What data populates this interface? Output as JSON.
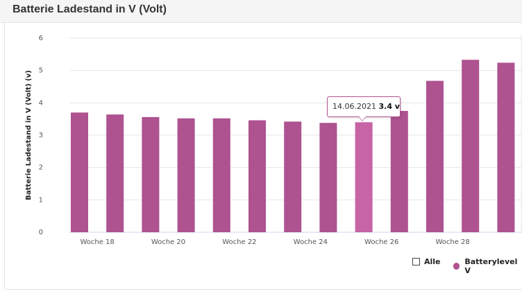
{
  "header": {
    "title": "Batterie Ladestand in V (Volt)"
  },
  "colors": {
    "bar": "#ae5290",
    "bar_highlight": "#c764a5",
    "tooltip_border": "#b35593"
  },
  "tooltip": {
    "date": "14.06.2021",
    "value": "3.4 v"
  },
  "legend": [
    {
      "label": "Alle",
      "symbol": "checkbox-icon"
    },
    {
      "label": "Batterylevel V",
      "symbol": "circle-icon",
      "color": "#ae5290"
    }
  ],
  "chart_data": {
    "type": "bar",
    "ylabel": "Batterie Ladestand in V (Volt) (v)",
    "ylim": [
      0,
      6
    ],
    "yticks": [
      "0",
      "1",
      "2",
      "3",
      "4",
      "5",
      "6"
    ],
    "x_tick_labels": [
      "Woche 18",
      "Woche 20",
      "Woche 22",
      "Woche 24",
      "Woche 26",
      "Woche 28"
    ],
    "grid": true,
    "series": [
      {
        "name": "Batterylevel V",
        "values": [
          3.7,
          3.64,
          3.56,
          3.52,
          3.52,
          3.46,
          3.42,
          3.38,
          3.4,
          3.75,
          4.68,
          5.33,
          5.24
        ]
      }
    ],
    "highlight_index": 8
  }
}
